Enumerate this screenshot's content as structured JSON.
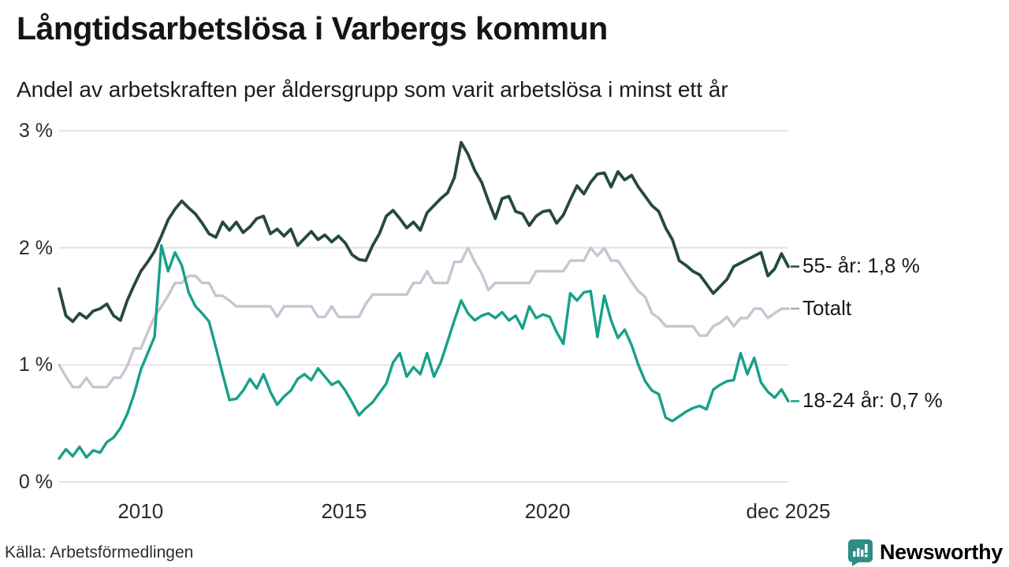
{
  "header": {
    "title": "Långtidsarbetslösa i Varbergs kommun",
    "subtitle": "Andel av arbetskraften per åldersgrupp som varit arbetslösa i minst ett år"
  },
  "source": {
    "label": "Källa: Arbetsförmedlingen"
  },
  "branding": {
    "name": "Newsworthy",
    "color": "#2e8c85"
  },
  "chart_data": {
    "type": "line",
    "title": "Långtidsarbetslösa i Varbergs kommun",
    "xlabel": "",
    "ylabel": "Andel av arbetskraften (%)",
    "grid": "horizontal",
    "grid_color": "#e3e3e4",
    "ylim": [
      0,
      3
    ],
    "x_range_years": [
      2008.0,
      2025.917
    ],
    "x_ticks": [
      {
        "label": "2010",
        "year": 2010
      },
      {
        "label": "2015",
        "year": 2015
      },
      {
        "label": "2020",
        "year": 2020
      },
      {
        "label": "dec 2025",
        "year": 2025.917
      }
    ],
    "y_ticks": [
      {
        "label": "0 %",
        "value": 0
      },
      {
        "label": "1 %",
        "value": 1
      },
      {
        "label": "2 %",
        "value": 2
      },
      {
        "label": "3 %",
        "value": 3
      }
    ],
    "legend_position": "right-end-labels",
    "series": [
      {
        "name": "55- år",
        "end_label": "55- år: 1,8 %",
        "last_value_label": "1,8 %",
        "color": "#26493f",
        "values": [
          1.65,
          1.42,
          1.37,
          1.44,
          1.4,
          1.46,
          1.48,
          1.52,
          1.42,
          1.38,
          1.55,
          1.68,
          1.8,
          1.88,
          1.97,
          2.1,
          2.24,
          2.33,
          2.4,
          2.34,
          2.29,
          2.21,
          2.12,
          2.09,
          2.22,
          2.15,
          2.22,
          2.13,
          2.18,
          2.25,
          2.27,
          2.12,
          2.16,
          2.1,
          2.16,
          2.02,
          2.08,
          2.14,
          2.07,
          2.11,
          2.05,
          2.1,
          2.04,
          1.94,
          1.9,
          1.89,
          2.02,
          2.12,
          2.27,
          2.32,
          2.25,
          2.17,
          2.22,
          2.15,
          2.3,
          2.36,
          2.42,
          2.47,
          2.6,
          2.9,
          2.8,
          2.66,
          2.56,
          2.4,
          2.25,
          2.42,
          2.44,
          2.31,
          2.29,
          2.19,
          2.27,
          2.31,
          2.32,
          2.21,
          2.28,
          2.41,
          2.53,
          2.46,
          2.56,
          2.63,
          2.64,
          2.52,
          2.65,
          2.58,
          2.62,
          2.52,
          2.44,
          2.36,
          2.31,
          2.17,
          2.07,
          1.89,
          1.85,
          1.8,
          1.77,
          1.69,
          1.61,
          1.67,
          1.73,
          1.84,
          1.87,
          1.9,
          1.93,
          1.96,
          1.76,
          1.82,
          1.95,
          1.84
        ]
      },
      {
        "name": "Totalt",
        "end_label": "Totalt",
        "last_value_label": "1,5 %",
        "color": "#c7c5d2",
        "values": [
          1.0,
          0.9,
          0.81,
          0.81,
          0.89,
          0.81,
          0.81,
          0.81,
          0.89,
          0.89,
          0.99,
          1.14,
          1.14,
          1.28,
          1.41,
          1.5,
          1.59,
          1.7,
          1.7,
          1.76,
          1.76,
          1.7,
          1.7,
          1.59,
          1.59,
          1.55,
          1.5,
          1.5,
          1.5,
          1.5,
          1.5,
          1.5,
          1.41,
          1.5,
          1.5,
          1.5,
          1.5,
          1.5,
          1.41,
          1.41,
          1.5,
          1.41,
          1.41,
          1.41,
          1.41,
          1.52,
          1.6,
          1.6,
          1.6,
          1.6,
          1.6,
          1.6,
          1.7,
          1.7,
          1.8,
          1.7,
          1.7,
          1.7,
          1.88,
          1.88,
          2.0,
          1.88,
          1.78,
          1.64,
          1.7,
          1.7,
          1.7,
          1.7,
          1.7,
          1.7,
          1.8,
          1.8,
          1.8,
          1.8,
          1.8,
          1.89,
          1.89,
          1.89,
          2.0,
          1.93,
          2.0,
          1.89,
          1.89,
          1.8,
          1.71,
          1.63,
          1.58,
          1.44,
          1.4,
          1.33,
          1.33,
          1.33,
          1.33,
          1.33,
          1.25,
          1.25,
          1.33,
          1.36,
          1.41,
          1.33,
          1.4,
          1.4,
          1.48,
          1.48,
          1.4,
          1.44,
          1.48,
          1.48
        ]
      },
      {
        "name": "18-24 år",
        "end_label": "18-24 år: 0,7 %",
        "last_value_label": "0,7 %",
        "color": "#17a08a",
        "values": [
          0.2,
          0.28,
          0.22,
          0.3,
          0.21,
          0.27,
          0.25,
          0.34,
          0.38,
          0.46,
          0.58,
          0.75,
          0.96,
          1.1,
          1.24,
          2.02,
          1.8,
          1.96,
          1.85,
          1.62,
          1.5,
          1.44,
          1.37,
          1.15,
          0.92,
          0.7,
          0.71,
          0.78,
          0.88,
          0.8,
          0.92,
          0.77,
          0.66,
          0.73,
          0.78,
          0.88,
          0.92,
          0.87,
          0.97,
          0.9,
          0.83,
          0.86,
          0.78,
          0.68,
          0.57,
          0.63,
          0.68,
          0.76,
          0.84,
          1.02,
          1.1,
          0.9,
          0.98,
          0.92,
          1.1,
          0.9,
          1.02,
          1.2,
          1.38,
          1.55,
          1.44,
          1.38,
          1.42,
          1.44,
          1.4,
          1.45,
          1.38,
          1.42,
          1.31,
          1.5,
          1.4,
          1.43,
          1.41,
          1.28,
          1.18,
          1.61,
          1.55,
          1.62,
          1.63,
          1.24,
          1.59,
          1.38,
          1.23,
          1.3,
          1.17,
          1.0,
          0.86,
          0.78,
          0.75,
          0.55,
          0.52,
          0.56,
          0.6,
          0.63,
          0.65,
          0.62,
          0.79,
          0.83,
          0.86,
          0.87,
          1.1,
          0.92,
          1.06,
          0.85,
          0.77,
          0.72,
          0.79,
          0.69
        ]
      }
    ]
  }
}
